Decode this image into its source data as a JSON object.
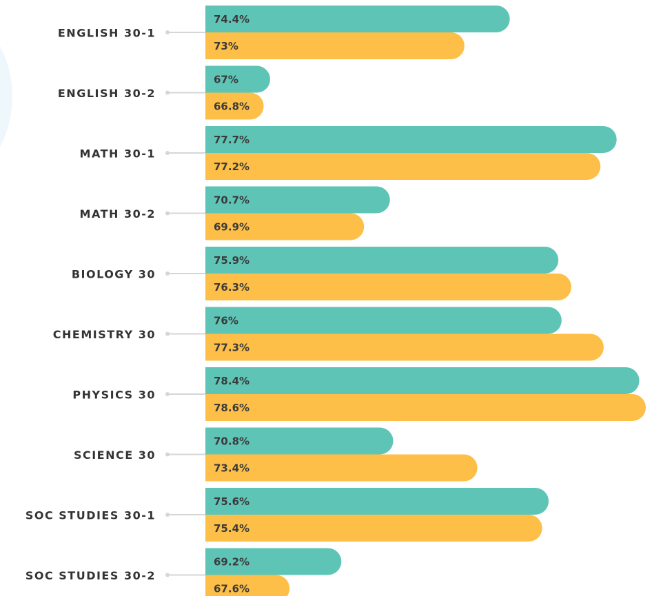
{
  "chart_data": {
    "type": "bar",
    "orientation": "horizontal",
    "categories": [
      "ENGLISH 30-1",
      "ENGLISH 30-2",
      "MATH 30-1",
      "MATH 30-2",
      "BIOLOGY 30",
      "CHEMISTRY 30",
      "PHYSICS 30",
      "SCIENCE 30",
      "SOC STUDIES 30-1",
      "SOC STUDIES 30-2"
    ],
    "series": [
      {
        "color": "#5ec4b6",
        "values": [
          74.4,
          67,
          77.7,
          70.7,
          75.9,
          76,
          78.4,
          70.8,
          75.6,
          69.2
        ],
        "value_labels": [
          "74.4%",
          "67%",
          "77.7%",
          "70.7%",
          "75.9%",
          "76%",
          "78.4%",
          "70.8%",
          "75.6%",
          "69.2%"
        ]
      },
      {
        "color": "#fdbf47",
        "values": [
          73,
          66.8,
          77.2,
          69.9,
          76.3,
          77.3,
          78.6,
          73.4,
          75.4,
          67.6
        ],
        "value_labels": [
          "73%",
          "66.8%",
          "77.2%",
          "69.9%",
          "76.3%",
          "77.3%",
          "78.6%",
          "73.4%",
          "75.4%",
          "67.6%"
        ]
      }
    ],
    "xlim": [
      65,
      79
    ]
  }
}
